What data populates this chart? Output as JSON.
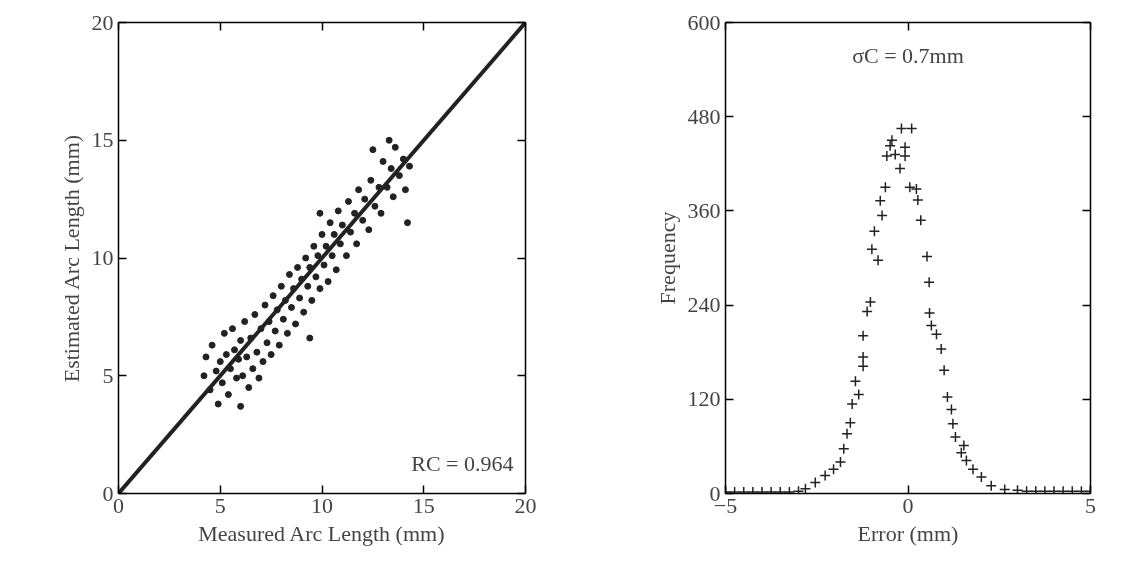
{
  "chart_data": [
    {
      "type": "scatter",
      "xlabel": "Measured Arc Length (mm)",
      "ylabel": "Estimated Arc Length (mm)",
      "annotations": [
        "RC = 0.964"
      ],
      "xlim": [
        0,
        20
      ],
      "ylim": [
        0,
        20
      ],
      "xticks": [
        0,
        5,
        10,
        15,
        20
      ],
      "yticks": [
        0,
        5,
        10,
        15,
        20
      ],
      "grid": false,
      "marker": "circle",
      "series": [
        {
          "color": "#222222",
          "x": [
            4.2,
            4.3,
            4.5,
            4.6,
            4.8,
            4.9,
            5.0,
            5.1,
            5.2,
            5.3,
            5.4,
            5.5,
            5.6,
            5.7,
            5.8,
            5.9,
            6.0,
            6.0,
            6.1,
            6.2,
            6.3,
            6.4,
            6.5,
            6.6,
            6.7,
            6.8,
            6.9,
            7.0,
            7.1,
            7.2,
            7.3,
            7.4,
            7.5,
            7.6,
            7.7,
            7.8,
            7.9,
            8.0,
            8.1,
            8.2,
            8.3,
            8.4,
            8.5,
            8.6,
            8.7,
            8.8,
            8.9,
            9.0,
            9.1,
            9.2,
            9.3,
            9.4,
            9.4,
            9.5,
            9.6,
            9.7,
            9.8,
            9.9,
            9.9,
            10.0,
            10.1,
            10.2,
            10.3,
            10.4,
            10.5,
            10.6,
            10.7,
            10.8,
            10.9,
            11.0,
            11.2,
            11.3,
            11.4,
            11.6,
            11.7,
            11.8,
            12.0,
            12.1,
            12.3,
            12.4,
            12.5,
            12.6,
            12.8,
            12.9,
            13.0,
            13.2,
            13.3,
            13.4,
            13.5,
            13.6,
            13.8,
            14.0,
            14.1,
            14.2,
            14.3
          ],
          "values": [
            5.0,
            5.8,
            4.4,
            6.3,
            5.2,
            3.8,
            5.6,
            4.7,
            6.8,
            5.9,
            4.2,
            5.3,
            7.0,
            6.1,
            4.9,
            5.7,
            3.7,
            6.5,
            5.0,
            7.3,
            5.8,
            4.5,
            6.6,
            5.3,
            7.6,
            6.0,
            4.9,
            7.0,
            5.6,
            8.0,
            6.4,
            7.3,
            5.9,
            8.4,
            6.9,
            7.8,
            6.3,
            8.8,
            7.4,
            8.2,
            6.8,
            9.3,
            7.9,
            8.7,
            7.2,
            9.6,
            8.3,
            9.1,
            7.7,
            10.0,
            8.8,
            9.6,
            6.6,
            8.2,
            10.5,
            9.2,
            10.1,
            8.7,
            11.9,
            11.0,
            9.7,
            10.5,
            9.0,
            11.5,
            10.1,
            11.0,
            9.5,
            12.0,
            10.6,
            11.4,
            10.1,
            12.4,
            11.1,
            11.9,
            10.6,
            12.9,
            11.6,
            12.5,
            11.2,
            13.3,
            14.6,
            12.2,
            13.0,
            11.9,
            14.1,
            13.0,
            15.0,
            13.8,
            12.6,
            14.7,
            13.5,
            14.2,
            12.9,
            11.5,
            13.9
          ]
        },
        {
          "type": "line",
          "marker": "none",
          "color": "#222222",
          "x": [
            0,
            20
          ],
          "values": [
            0,
            20
          ]
        }
      ]
    },
    {
      "type": "scatter",
      "xlabel": "Error (mm)",
      "ylabel": "Frequency",
      "annotations": [
        "σC = 0.7mm"
      ],
      "xlim": [
        -5,
        5
      ],
      "ylim": [
        0,
        600
      ],
      "xticks": [
        -5,
        0,
        5
      ],
      "yticks": [
        0,
        120,
        240,
        360,
        480,
        600
      ],
      "grid": false,
      "marker": "cross",
      "series": [
        {
          "color": "#222222",
          "x": [
            -5.0,
            -4.75,
            -4.5,
            -4.25,
            -4.0,
            -3.75,
            -3.5,
            -3.25,
            -3.0,
            -2.81,
            -2.54,
            -2.27,
            -2.04,
            -1.85,
            -1.76,
            -1.67,
            -1.58,
            -1.53,
            -1.44,
            -1.35,
            -1.23,
            -1.23,
            -1.23,
            -1.12,
            -1.03,
            -0.99,
            -0.92,
            -0.82,
            -0.76,
            -0.71,
            -0.62,
            -0.58,
            -0.49,
            -0.44,
            -0.35,
            -0.22,
            -0.18,
            -0.08,
            -0.08,
            0.05,
            0.1,
            0.23,
            0.27,
            0.35,
            0.52,
            0.58,
            0.59,
            0.64,
            0.78,
            0.91,
            0.99,
            1.08,
            1.19,
            1.23,
            1.3,
            1.46,
            1.53,
            1.6,
            1.78,
            2.01,
            2.28,
            2.65,
            3.0,
            3.25,
            3.5,
            3.75,
            4.0,
            4.25,
            4.5,
            4.75,
            5.0
          ],
          "values": [
            2,
            2,
            2,
            2,
            2,
            2,
            2,
            2,
            3,
            6,
            14,
            23,
            31,
            40,
            57,
            76,
            90,
            114,
            143,
            126,
            201,
            174,
            162,
            232,
            244,
            311,
            334,
            297,
            373,
            354,
            390,
            430,
            443,
            450,
            432,
            414,
            465,
            441,
            430,
            390,
            465,
            388,
            374,
            348,
            302,
            269,
            230,
            214,
            203,
            184,
            157,
            123,
            107,
            89,
            72,
            52,
            61,
            42,
            31,
            21,
            10,
            5,
            4,
            3,
            3,
            3,
            3,
            3,
            3,
            3,
            3
          ]
        }
      ]
    }
  ]
}
